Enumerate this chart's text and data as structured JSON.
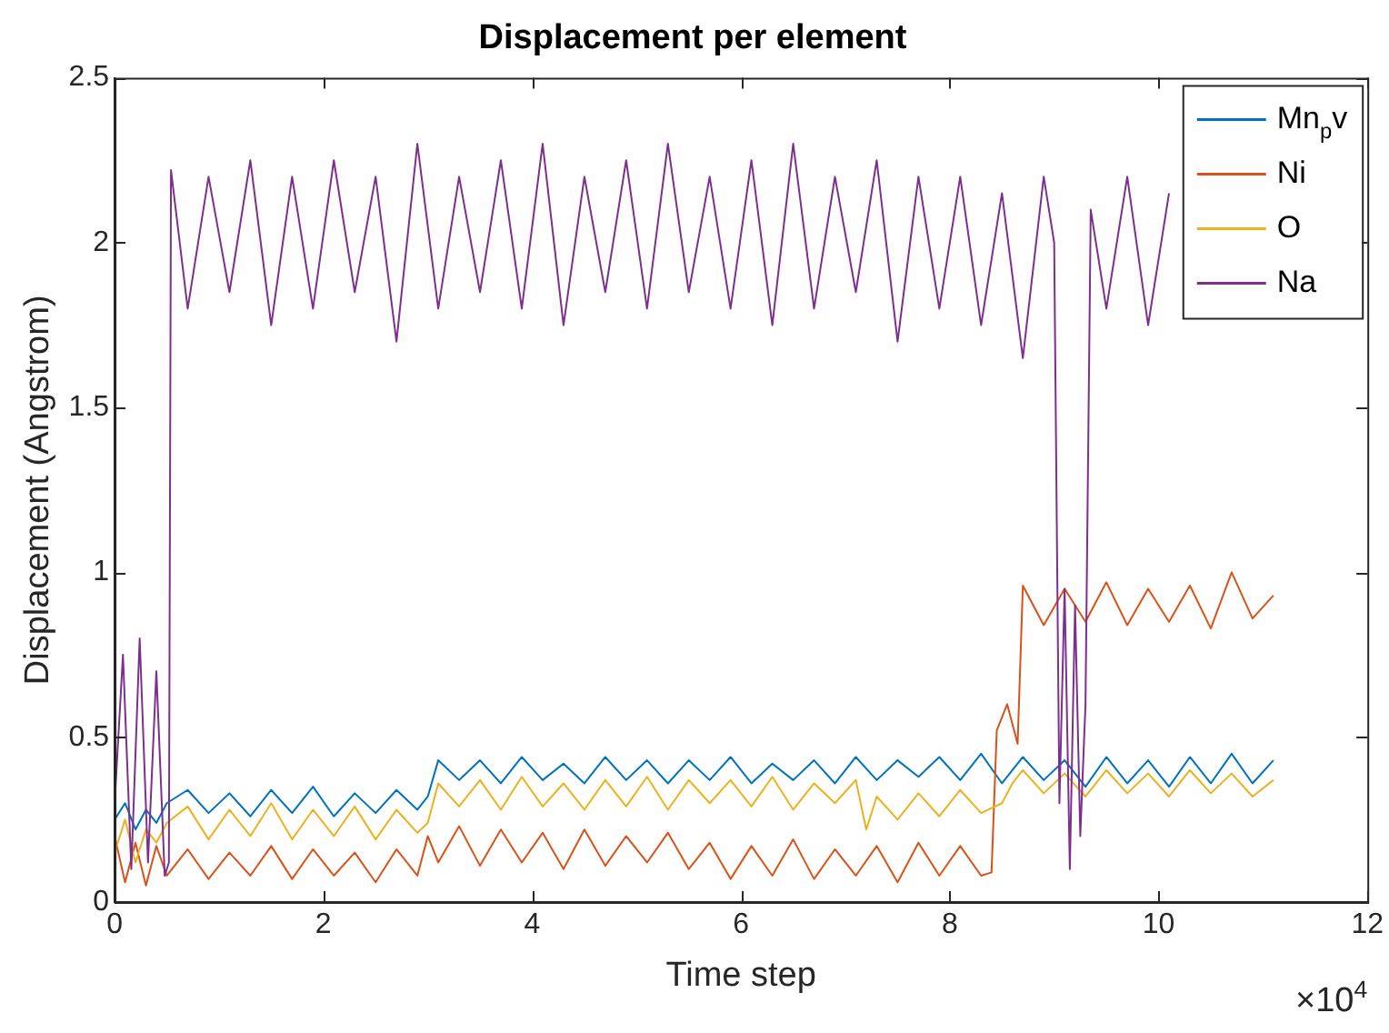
{
  "chart_data": {
    "type": "line",
    "title": "Displacement per element",
    "xlabel": "Time step",
    "ylabel": "Displacement (Angstrom)",
    "xlim": [
      0,
      12
    ],
    "xticks": [
      0,
      2,
      4,
      6,
      8,
      10,
      12
    ],
    "ylim": [
      0,
      2.5
    ],
    "yticks": [
      0,
      0.5,
      1,
      1.5,
      2,
      2.5
    ],
    "grid": false,
    "legend": "top right",
    "marker": "none",
    "line_style": "solid",
    "annotations": [
      "×10$^{4}$"
    ],
    "series": [
      {
        "name": "Mn$_{p}$v",
        "color": "#0072bd",
        "x": [
          0,
          0.1,
          0.2,
          0.3,
          0.4,
          0.5,
          0.7,
          0.9,
          1.1,
          1.3,
          1.5,
          1.7,
          1.9,
          2.1,
          2.3,
          2.5,
          2.7,
          2.9,
          3.0,
          3.1,
          3.3,
          3.5,
          3.7,
          3.9,
          4.1,
          4.3,
          4.5,
          4.7,
          4.9,
          5.1,
          5.3,
          5.5,
          5.7,
          5.9,
          6.1,
          6.3,
          6.5,
          6.7,
          6.9,
          7.1,
          7.3,
          7.5,
          7.7,
          7.9,
          8.1,
          8.3,
          8.5,
          8.7,
          8.9,
          9.1,
          9.3,
          9.5,
          9.7,
          9.9,
          10.1,
          10.3,
          10.5,
          10.7,
          10.9,
          11.1
        ],
        "values": [
          0.25,
          0.3,
          0.22,
          0.28,
          0.24,
          0.3,
          0.34,
          0.27,
          0.33,
          0.26,
          0.34,
          0.27,
          0.35,
          0.26,
          0.33,
          0.27,
          0.34,
          0.28,
          0.32,
          0.43,
          0.37,
          0.43,
          0.36,
          0.44,
          0.37,
          0.42,
          0.36,
          0.44,
          0.37,
          0.43,
          0.36,
          0.43,
          0.37,
          0.44,
          0.36,
          0.42,
          0.37,
          0.43,
          0.36,
          0.44,
          0.37,
          0.43,
          0.38,
          0.44,
          0.37,
          0.45,
          0.36,
          0.44,
          0.37,
          0.43,
          0.35,
          0.44,
          0.36,
          0.43,
          0.35,
          0.44,
          0.36,
          0.45,
          0.36,
          0.43
        ]
      },
      {
        "name": "Ni",
        "color": "#d95319",
        "x": [
          0,
          0.1,
          0.2,
          0.3,
          0.4,
          0.5,
          0.7,
          0.9,
          1.1,
          1.3,
          1.5,
          1.7,
          1.9,
          2.1,
          2.3,
          2.5,
          2.7,
          2.9,
          3.0,
          3.1,
          3.3,
          3.5,
          3.7,
          3.9,
          4.1,
          4.3,
          4.5,
          4.7,
          4.9,
          5.1,
          5.3,
          5.5,
          5.7,
          5.9,
          6.1,
          6.3,
          6.5,
          6.7,
          6.9,
          7.1,
          7.3,
          7.5,
          7.7,
          7.9,
          8.1,
          8.3,
          8.4,
          8.45,
          8.55,
          8.65,
          8.7,
          8.9,
          9.1,
          9.3,
          9.5,
          9.7,
          9.9,
          10.1,
          10.3,
          10.5,
          10.7,
          10.9,
          11.1
        ],
        "values": [
          0.2,
          0.06,
          0.18,
          0.05,
          0.17,
          0.08,
          0.16,
          0.07,
          0.15,
          0.08,
          0.17,
          0.07,
          0.16,
          0.08,
          0.15,
          0.06,
          0.16,
          0.08,
          0.2,
          0.12,
          0.23,
          0.11,
          0.22,
          0.12,
          0.21,
          0.1,
          0.22,
          0.11,
          0.2,
          0.12,
          0.21,
          0.1,
          0.18,
          0.07,
          0.17,
          0.08,
          0.19,
          0.07,
          0.16,
          0.08,
          0.17,
          0.06,
          0.18,
          0.08,
          0.17,
          0.08,
          0.09,
          0.52,
          0.6,
          0.48,
          0.96,
          0.84,
          0.95,
          0.85,
          0.97,
          0.84,
          0.95,
          0.85,
          0.96,
          0.83,
          1.0,
          0.86,
          0.93
        ]
      },
      {
        "name": "O",
        "color": "#edb120",
        "x": [
          0,
          0.1,
          0.2,
          0.3,
          0.4,
          0.5,
          0.7,
          0.9,
          1.1,
          1.3,
          1.5,
          1.7,
          1.9,
          2.1,
          2.3,
          2.5,
          2.7,
          2.9,
          3.0,
          3.1,
          3.3,
          3.5,
          3.7,
          3.9,
          4.1,
          4.3,
          4.5,
          4.7,
          4.9,
          5.1,
          5.3,
          5.5,
          5.7,
          5.9,
          6.1,
          6.3,
          6.5,
          6.7,
          6.9,
          7.1,
          7.2,
          7.3,
          7.5,
          7.7,
          7.9,
          8.1,
          8.3,
          8.5,
          8.6,
          8.7,
          8.9,
          9.1,
          9.3,
          9.5,
          9.7,
          9.9,
          10.1,
          10.3,
          10.5,
          10.7,
          10.9,
          11.1
        ],
        "values": [
          0.15,
          0.25,
          0.12,
          0.22,
          0.18,
          0.24,
          0.29,
          0.19,
          0.28,
          0.2,
          0.3,
          0.19,
          0.28,
          0.2,
          0.29,
          0.19,
          0.28,
          0.21,
          0.24,
          0.36,
          0.29,
          0.37,
          0.28,
          0.38,
          0.29,
          0.36,
          0.28,
          0.37,
          0.29,
          0.38,
          0.28,
          0.37,
          0.3,
          0.37,
          0.29,
          0.38,
          0.28,
          0.36,
          0.3,
          0.37,
          0.22,
          0.32,
          0.25,
          0.33,
          0.26,
          0.34,
          0.27,
          0.3,
          0.36,
          0.4,
          0.33,
          0.39,
          0.32,
          0.4,
          0.33,
          0.39,
          0.32,
          0.4,
          0.33,
          0.39,
          0.32,
          0.37
        ]
      },
      {
        "name": "Na",
        "color": "#7e2f8e",
        "x": [
          0,
          0.08,
          0.16,
          0.24,
          0.32,
          0.4,
          0.48,
          0.52,
          0.54,
          0.7,
          0.9,
          1.1,
          1.3,
          1.5,
          1.7,
          1.9,
          2.1,
          2.3,
          2.5,
          2.7,
          2.9,
          3.1,
          3.3,
          3.5,
          3.7,
          3.9,
          4.1,
          4.3,
          4.5,
          4.7,
          4.9,
          5.1,
          5.3,
          5.5,
          5.7,
          5.9,
          6.1,
          6.3,
          6.5,
          6.7,
          6.9,
          7.1,
          7.3,
          7.5,
          7.7,
          7.9,
          8.1,
          8.3,
          8.5,
          8.7,
          8.9,
          9.0,
          9.05,
          9.1,
          9.15,
          9.2,
          9.25,
          9.3,
          9.35,
          9.5,
          9.7,
          9.9,
          10.1
        ],
        "values": [
          0.3,
          0.75,
          0.1,
          0.8,
          0.12,
          0.7,
          0.08,
          0.12,
          2.22,
          1.8,
          2.2,
          1.85,
          2.25,
          1.75,
          2.2,
          1.8,
          2.25,
          1.85,
          2.2,
          1.7,
          2.3,
          1.8,
          2.2,
          1.85,
          2.25,
          1.8,
          2.3,
          1.75,
          2.2,
          1.85,
          2.25,
          1.8,
          2.3,
          1.85,
          2.2,
          1.8,
          2.25,
          1.75,
          2.3,
          1.8,
          2.2,
          1.85,
          2.25,
          1.7,
          2.2,
          1.8,
          2.2,
          1.75,
          2.15,
          1.65,
          2.2,
          2.0,
          0.3,
          0.95,
          0.1,
          0.9,
          0.2,
          0.6,
          2.1,
          1.8,
          2.2,
          1.75,
          2.15
        ]
      }
    ]
  }
}
